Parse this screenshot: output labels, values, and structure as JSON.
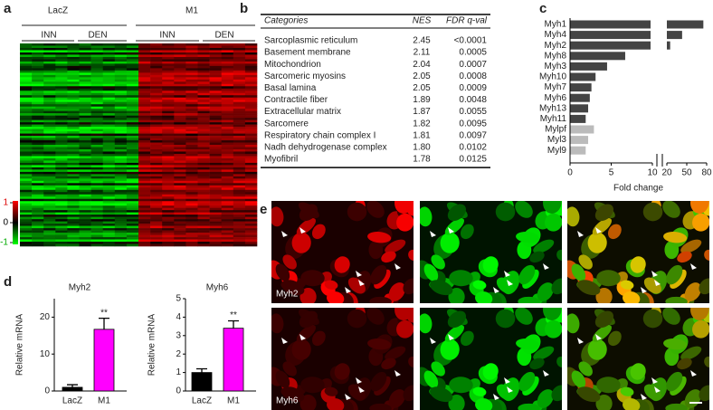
{
  "figure": {
    "a": {
      "label": "a",
      "groups": [
        "LacZ",
        "M1"
      ],
      "subgroups": [
        "INN",
        "DEN",
        "INN",
        "DEN"
      ],
      "colorbar_ticks": [
        1,
        0,
        -1
      ]
    },
    "b": {
      "label": "b",
      "columns": [
        "Categories",
        "NES",
        "FDR q-val"
      ],
      "rows": [
        [
          "Sarcoplasmic reticulum",
          "2.45",
          "<0.0001"
        ],
        [
          "Basement membrane",
          "2.11",
          "0.0005"
        ],
        [
          "Mitochondrion",
          "2.04",
          "0.0007"
        ],
        [
          "Sarcomeric myosins",
          "2.05",
          "0.0008"
        ],
        [
          "Basal lamina",
          "2.05",
          "0.0009"
        ],
        [
          "Contractile fiber",
          "1.89",
          "0.0048"
        ],
        [
          "Extracellular matrix",
          "1.87",
          "0.0055"
        ],
        [
          "Sarcomere",
          "1.82",
          "0.0095"
        ],
        [
          "Respiratory chain complex I",
          "1.81",
          "0.0097"
        ],
        [
          "Nadh dehydrogenase complex",
          "1.80",
          "0.0102"
        ],
        [
          "Myofibril",
          "1.78",
          "0.0125"
        ]
      ]
    },
    "e": {
      "label": "e",
      "rows": [
        "Myh2",
        "Myh6"
      ]
    }
  },
  "chart_data": [
    {
      "type": "hbar",
      "panel_label": "c",
      "xlabel": "Fold change",
      "categories": [
        "Myh1",
        "Myh4",
        "Myh2",
        "Myh8",
        "Myh3",
        "Myh10",
        "Myh7",
        "Myh6",
        "Myh13",
        "Myh11",
        "Mylpf",
        "Myl3",
        "Myl9"
      ],
      "values": [
        75,
        43,
        25,
        6.7,
        4.5,
        3.1,
        2.6,
        2.4,
        2.2,
        1.9,
        2.9,
        2.2,
        1.9
      ],
      "colors": [
        "#444444",
        "#444444",
        "#444444",
        "#444444",
        "#444444",
        "#444444",
        "#444444",
        "#444444",
        "#444444",
        "#444444",
        "#bbbbbb",
        "#bbbbbb",
        "#bbbbbb"
      ],
      "xlim": [
        0,
        80
      ],
      "axis_break": [
        10,
        20
      ],
      "xticks": [
        0,
        5,
        10,
        20,
        50,
        80
      ]
    },
    {
      "type": "bar",
      "panel_label": "d",
      "title": "Myh2",
      "ylabel": "Relative mRNA",
      "categories": [
        "LacZ",
        "M1"
      ],
      "values": [
        1,
        16.7
      ],
      "errors": [
        0.7,
        3
      ],
      "significance": [
        null,
        "**"
      ],
      "colors": [
        "#000000",
        "#ff00ff"
      ],
      "ylim": [
        0,
        25
      ],
      "yticks": [
        0,
        10,
        20
      ]
    },
    {
      "type": "bar",
      "title": "Myh6",
      "ylabel": "Relative mRNA",
      "categories": [
        "LacZ",
        "M1"
      ],
      "values": [
        1,
        3.4
      ],
      "errors": [
        0.2,
        0.4
      ],
      "significance": [
        null,
        "**"
      ],
      "colors": [
        "#000000",
        "#ff00ff"
      ],
      "ylim": [
        0,
        5
      ],
      "yticks": [
        0,
        1,
        2,
        3,
        4,
        5
      ]
    }
  ]
}
